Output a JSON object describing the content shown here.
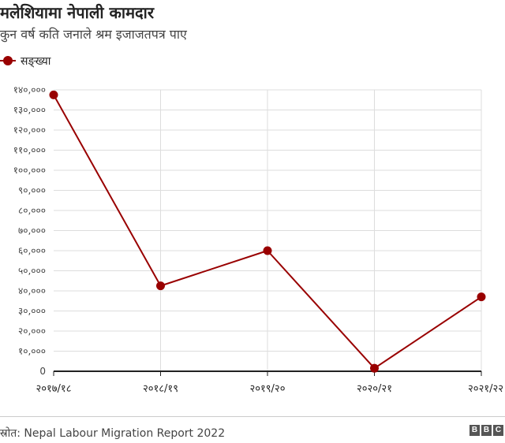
{
  "header": {
    "title": "मलेशियामा नेपाली कामदार",
    "subtitle": "कुन वर्ष कति जनाले श्रम इजाजतपत्र पाए"
  },
  "legend": {
    "label": "सङ्ख्या"
  },
  "footer": {
    "source": "स्रोत: Nepal Labour Migration Report 2022",
    "logo_letters": [
      "B",
      "B",
      "C"
    ]
  },
  "colors": {
    "series": "#990000",
    "grid": "#dddddd",
    "axis": "#222222",
    "logo": "#555555"
  },
  "chart_data": {
    "type": "line",
    "title": "मलेशियामा नेपाली कामदार",
    "subtitle": "कुन वर्ष कति जनाले श्रम इजाजतपत्र पाए",
    "categories": [
      "२०१७/१८",
      "२०१८/१९",
      "२०१९/२०",
      "२०२०/२१",
      "२०२१/२२"
    ],
    "series": [
      {
        "name": "सङ्ख्या",
        "values": [
          137500,
          42500,
          60000,
          1500,
          37000
        ]
      }
    ],
    "ylim": [
      0,
      140000
    ],
    "y_ticks": [
      {
        "value": 0,
        "label": "0"
      },
      {
        "value": 10000,
        "label": "१०,०००"
      },
      {
        "value": 20000,
        "label": "२०,०००"
      },
      {
        "value": 30000,
        "label": "३०,०००"
      },
      {
        "value": 40000,
        "label": "४०,०००"
      },
      {
        "value": 50000,
        "label": "५०,०००"
      },
      {
        "value": 60000,
        "label": "६०,०००"
      },
      {
        "value": 70000,
        "label": "७०,०००"
      },
      {
        "value": 80000,
        "label": "८०,०००"
      },
      {
        "value": 90000,
        "label": "९०,०००"
      },
      {
        "value": 100000,
        "label": "१००,०००"
      },
      {
        "value": 110000,
        "label": "११०,०००"
      },
      {
        "value": 120000,
        "label": "१२०,०००"
      },
      {
        "value": 130000,
        "label": "१३०,०००"
      },
      {
        "value": 140000,
        "label": "१४०,०००"
      }
    ],
    "xlabel": "",
    "ylabel": "",
    "grid": true,
    "legend_position": "top-left",
    "source": "Nepal Labour Migration Report 2022"
  }
}
